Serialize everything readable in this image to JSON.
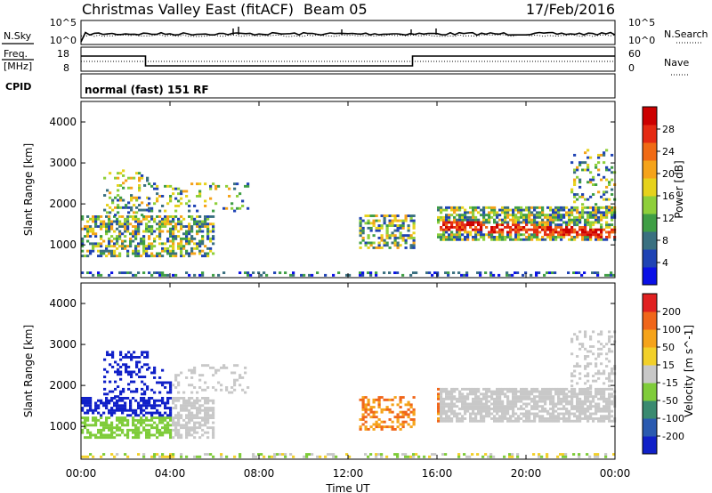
{
  "header": {
    "title": "Christmas Valley East (fitACF)",
    "beam": "Beam 05",
    "date": "17/Feb/2016"
  },
  "panels": {
    "noise": {
      "left_label": "N.Sky",
      "right_label": "N.Search",
      "left_ticks": [
        "10^5",
        "10^0"
      ],
      "right_ticks": [
        "10^5",
        "10^0"
      ]
    },
    "freq": {
      "left_label_line1": "Freq.",
      "left_label_line2": "[MHz]",
      "right_label": "Nave",
      "left_ticks": [
        "18",
        "8"
      ],
      "right_ticks": [
        "60",
        "0"
      ]
    },
    "cpid": {
      "label": "CPID",
      "text": "normal (fast) 151 RF"
    }
  },
  "chart_data": [
    {
      "type": "heatmap",
      "name": "power",
      "ylabel": "Slant Range [km]",
      "ylim": [
        200,
        4500
      ],
      "yticks": [
        "1000",
        "2000",
        "3000",
        "4000"
      ],
      "xticks": [
        "00:00",
        "04:00",
        "08:00",
        "12:00",
        "16:00",
        "20:00",
        "00:00"
      ],
      "colorbar": {
        "label": "Power [dB]",
        "ticks": [
          "4",
          "8",
          "12",
          "16",
          "20",
          "24",
          "28"
        ],
        "range": [
          0,
          32
        ],
        "colors": [
          "#0a10e6",
          "#1f43b4",
          "#3a7080",
          "#3f9e45",
          "#8ecf3a",
          "#e6d21c",
          "#f5a31a",
          "#f06a14",
          "#e52a12",
          "#cc0000"
        ]
      }
    },
    {
      "type": "heatmap",
      "name": "velocity",
      "ylabel": "Slant Range [km]",
      "ylim": [
        200,
        4500
      ],
      "yticks": [
        "1000",
        "2000",
        "3000",
        "4000"
      ],
      "xticks": [
        "00:00",
        "04:00",
        "08:00",
        "12:00",
        "16:00",
        "20:00",
        "00:00"
      ],
      "xlabel": "Time UT",
      "colorbar": {
        "label": "Velocity [m s^-1]",
        "ticks": [
          "200",
          "100",
          "50",
          "15",
          "-15",
          "-50",
          "-100",
          "-200"
        ],
        "colors": [
          "#1020c8",
          "#2a5ab0",
          "#3a8a70",
          "#7fcc3a",
          "#c8c8c8",
          "#f2d02a",
          "#f5a31a",
          "#f0661a",
          "#e02020"
        ]
      }
    }
  ]
}
